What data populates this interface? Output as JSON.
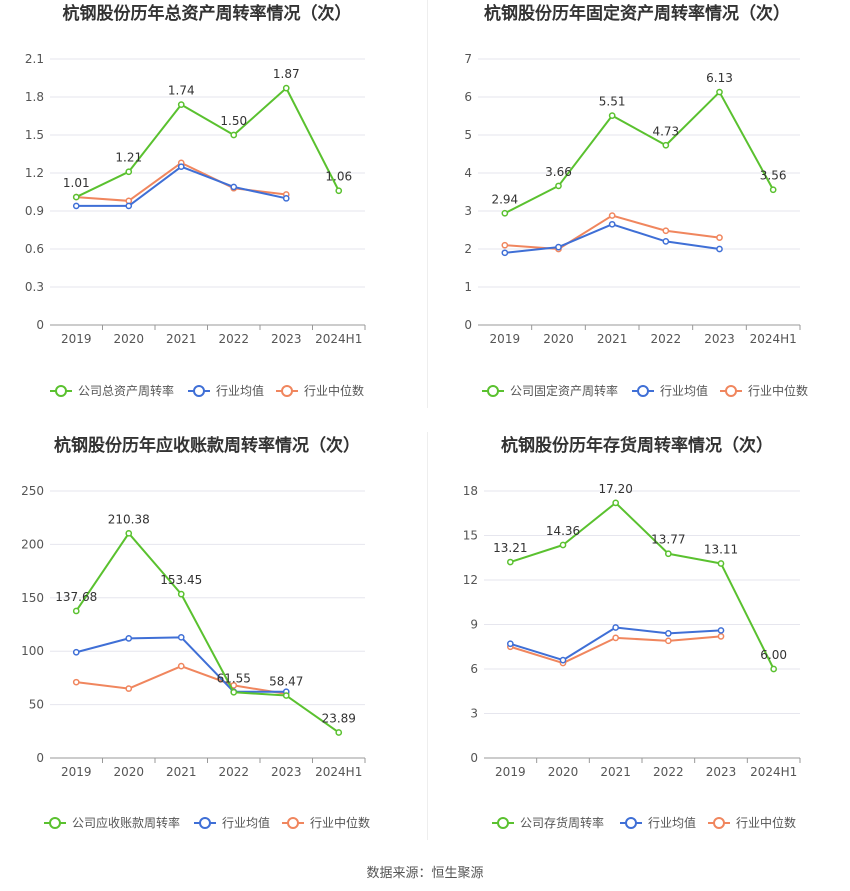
{
  "source_label": "数据来源：恒生聚源",
  "colors": {
    "company": "#5ac12f",
    "industry_avg": "#3f6fd6",
    "industry_median": "#f0865e",
    "grid": "#e6e6ee",
    "axis": "#999999",
    "label": "#555555",
    "title": "#333333"
  },
  "chart_data": [
    {
      "type": "line",
      "title": "杭钢股份历年总资产周转率情况（次）",
      "categories": [
        "2019",
        "2020",
        "2021",
        "2022",
        "2023",
        "2024H1"
      ],
      "ylim": [
        0,
        2.1
      ],
      "yticks": [
        "0",
        "0.3",
        "0.6",
        "0.9",
        "1.2",
        "1.5",
        "1.8",
        "2.1"
      ],
      "grid": true,
      "legend_position": "bottom",
      "series": [
        {
          "name": "公司总资产周转率",
          "key": "company",
          "values": [
            1.01,
            1.21,
            1.74,
            1.5,
            1.87,
            1.06
          ],
          "labels": [
            "1.01",
            "1.21",
            "1.74",
            "1.50",
            "1.87",
            "1.06"
          ]
        },
        {
          "name": "行业均值",
          "key": "industry_avg",
          "values": [
            0.94,
            0.94,
            1.25,
            1.09,
            1.0,
            null
          ]
        },
        {
          "name": "行业中位数",
          "key": "industry_median",
          "values": [
            1.01,
            0.98,
            1.28,
            1.08,
            1.03,
            null
          ]
        }
      ]
    },
    {
      "type": "line",
      "title": "杭钢股份历年固定资产周转率情况（次）",
      "categories": [
        "2019",
        "2020",
        "2021",
        "2022",
        "2023",
        "2024H1"
      ],
      "ylim": [
        0,
        7
      ],
      "yticks": [
        "0",
        "1",
        "2",
        "3",
        "4",
        "5",
        "6",
        "7"
      ],
      "grid": true,
      "legend_position": "bottom",
      "series": [
        {
          "name": "公司固定资产周转率",
          "key": "company",
          "values": [
            2.94,
            3.66,
            5.51,
            4.73,
            6.13,
            3.56
          ],
          "labels": [
            "2.94",
            "3.66",
            "5.51",
            "4.73",
            "6.13",
            "3.56"
          ]
        },
        {
          "name": "行业均值",
          "key": "industry_avg",
          "values": [
            1.9,
            2.05,
            2.65,
            2.2,
            2.0,
            null
          ]
        },
        {
          "name": "行业中位数",
          "key": "industry_median",
          "values": [
            2.1,
            2.0,
            2.88,
            2.48,
            2.3,
            null
          ]
        }
      ]
    },
    {
      "type": "line",
      "title": "杭钢股份历年应收账款周转率情况（次）",
      "categories": [
        "2019",
        "2020",
        "2021",
        "2022",
        "2023",
        "2024H1"
      ],
      "ylim": [
        0,
        250
      ],
      "yticks": [
        "0",
        "50",
        "100",
        "150",
        "200",
        "250"
      ],
      "grid": true,
      "legend_position": "bottom",
      "series": [
        {
          "name": "公司应收账款周转率",
          "key": "company",
          "values": [
            137.68,
            210.38,
            153.45,
            61.55,
            58.47,
            23.89
          ],
          "labels": [
            "137.68",
            "210.38",
            "153.45",
            "61.55",
            "58.47",
            "23.89"
          ]
        },
        {
          "name": "行业均值",
          "key": "industry_avg",
          "values": [
            99,
            112,
            113,
            62,
            62,
            null
          ]
        },
        {
          "name": "行业中位数",
          "key": "industry_median",
          "values": [
            71,
            65,
            86,
            68,
            60,
            null
          ]
        }
      ]
    },
    {
      "type": "line",
      "title": "杭钢股份历年存货周转率情况（次）",
      "categories": [
        "2019",
        "2020",
        "2021",
        "2022",
        "2023",
        "2024H1"
      ],
      "ylim": [
        0,
        18
      ],
      "yticks": [
        "0",
        "3",
        "6",
        "9",
        "12",
        "15",
        "18"
      ],
      "grid": true,
      "legend_position": "bottom",
      "series": [
        {
          "name": "公司存货周转率",
          "key": "company",
          "values": [
            13.21,
            14.36,
            17.2,
            13.77,
            13.11,
            6.0
          ],
          "labels": [
            "13.21",
            "14.36",
            "17.20",
            "13.77",
            "13.11",
            "6.00"
          ]
        },
        {
          "name": "行业均值",
          "key": "industry_avg",
          "values": [
            7.7,
            6.6,
            8.8,
            8.4,
            8.6,
            null
          ]
        },
        {
          "name": "行业中位数",
          "key": "industry_median",
          "values": [
            7.5,
            6.4,
            8.1,
            7.9,
            8.2,
            null
          ]
        }
      ]
    }
  ]
}
